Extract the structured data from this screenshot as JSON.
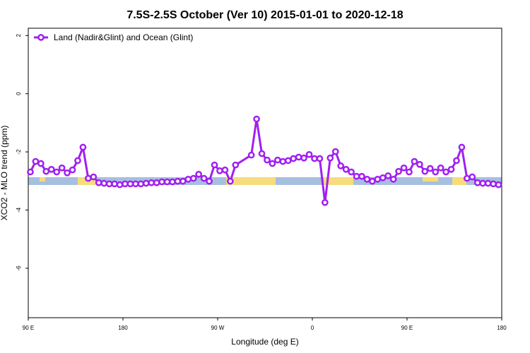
{
  "chart_data": {
    "type": "line",
    "title": "7.5S-2.5S October (Ver 10)   2015-01-01 to 2020-12-18",
    "x_label": "Longitude (deg E)",
    "y_label": "XCO2 - MLO trend (ppm)",
    "xlim": [
      90,
      540
    ],
    "ylim": [
      -7.7,
      2.25
    ],
    "xticks": [
      {
        "value": 90,
        "label": "90 E"
      },
      180,
      {
        "value": 270,
        "label": "90 W"
      },
      {
        "value": 360,
        "label": "0"
      },
      {
        "value": 450,
        "label": "90 E"
      },
      {
        "value": 540,
        "label": "180"
      }
    ],
    "yticks": [
      2,
      0,
      -2,
      -4,
      -6
    ],
    "legend": "top-left",
    "x": [
      92,
      97,
      102,
      107,
      112,
      117,
      122,
      127,
      132,
      137,
      142,
      147,
      152,
      157,
      162,
      167,
      172,
      177,
      182,
      187,
      192,
      197,
      202,
      207,
      212,
      217,
      222,
      227,
      232,
      237,
      242,
      247,
      252,
      257,
      262,
      267,
      272,
      277,
      282,
      287,
      302,
      307,
      312,
      317,
      322,
      327,
      332,
      337,
      342,
      347,
      352,
      357,
      362,
      367,
      372,
      377,
      382,
      387,
      392,
      397,
      402,
      407,
      412,
      417,
      422,
      427,
      432,
      437,
      442,
      447,
      452,
      457,
      462,
      467,
      472,
      477,
      482,
      487,
      492,
      497,
      502,
      507,
      512,
      517,
      522,
      527,
      532,
      537
    ],
    "series": [
      {
        "name": "Land (Nadir&Glint) and Ocean (Glint)",
        "color": "#a020f0",
        "values": [
          -2.69,
          -2.33,
          -2.4,
          -2.67,
          -2.6,
          -2.69,
          -2.55,
          -2.72,
          -2.62,
          -2.3,
          -1.84,
          -2.91,
          -2.86,
          -3.06,
          -3.08,
          -3.1,
          -3.1,
          -3.13,
          -3.1,
          -3.1,
          -3.1,
          -3.1,
          -3.08,
          -3.06,
          -3.06,
          -3.03,
          -3.03,
          -3.03,
          -3.01,
          -3.01,
          -2.94,
          -2.91,
          -2.77,
          -2.91,
          -3.01,
          -2.45,
          -2.65,
          -2.62,
          -3.01,
          -2.45,
          -2.11,
          -0.87,
          -2.06,
          -2.28,
          -2.4,
          -2.28,
          -2.33,
          -2.3,
          -2.23,
          -2.18,
          -2.21,
          -2.09,
          -2.23,
          -2.23,
          -3.74,
          -2.21,
          -1.99,
          -2.48,
          -2.6,
          -2.69,
          -2.84,
          -2.84,
          -2.94,
          -3.01,
          -2.94,
          -2.89,
          -2.82,
          -2.94,
          -2.67,
          -2.55,
          -2.69,
          -2.33,
          -2.43,
          -2.67,
          -2.57,
          -2.69,
          -2.55,
          -2.69,
          -2.6,
          -2.3,
          -1.84,
          -2.91,
          -2.86,
          -3.06,
          -3.08,
          -3.08,
          -3.1,
          -3.13
        ]
      }
    ]
  }
}
